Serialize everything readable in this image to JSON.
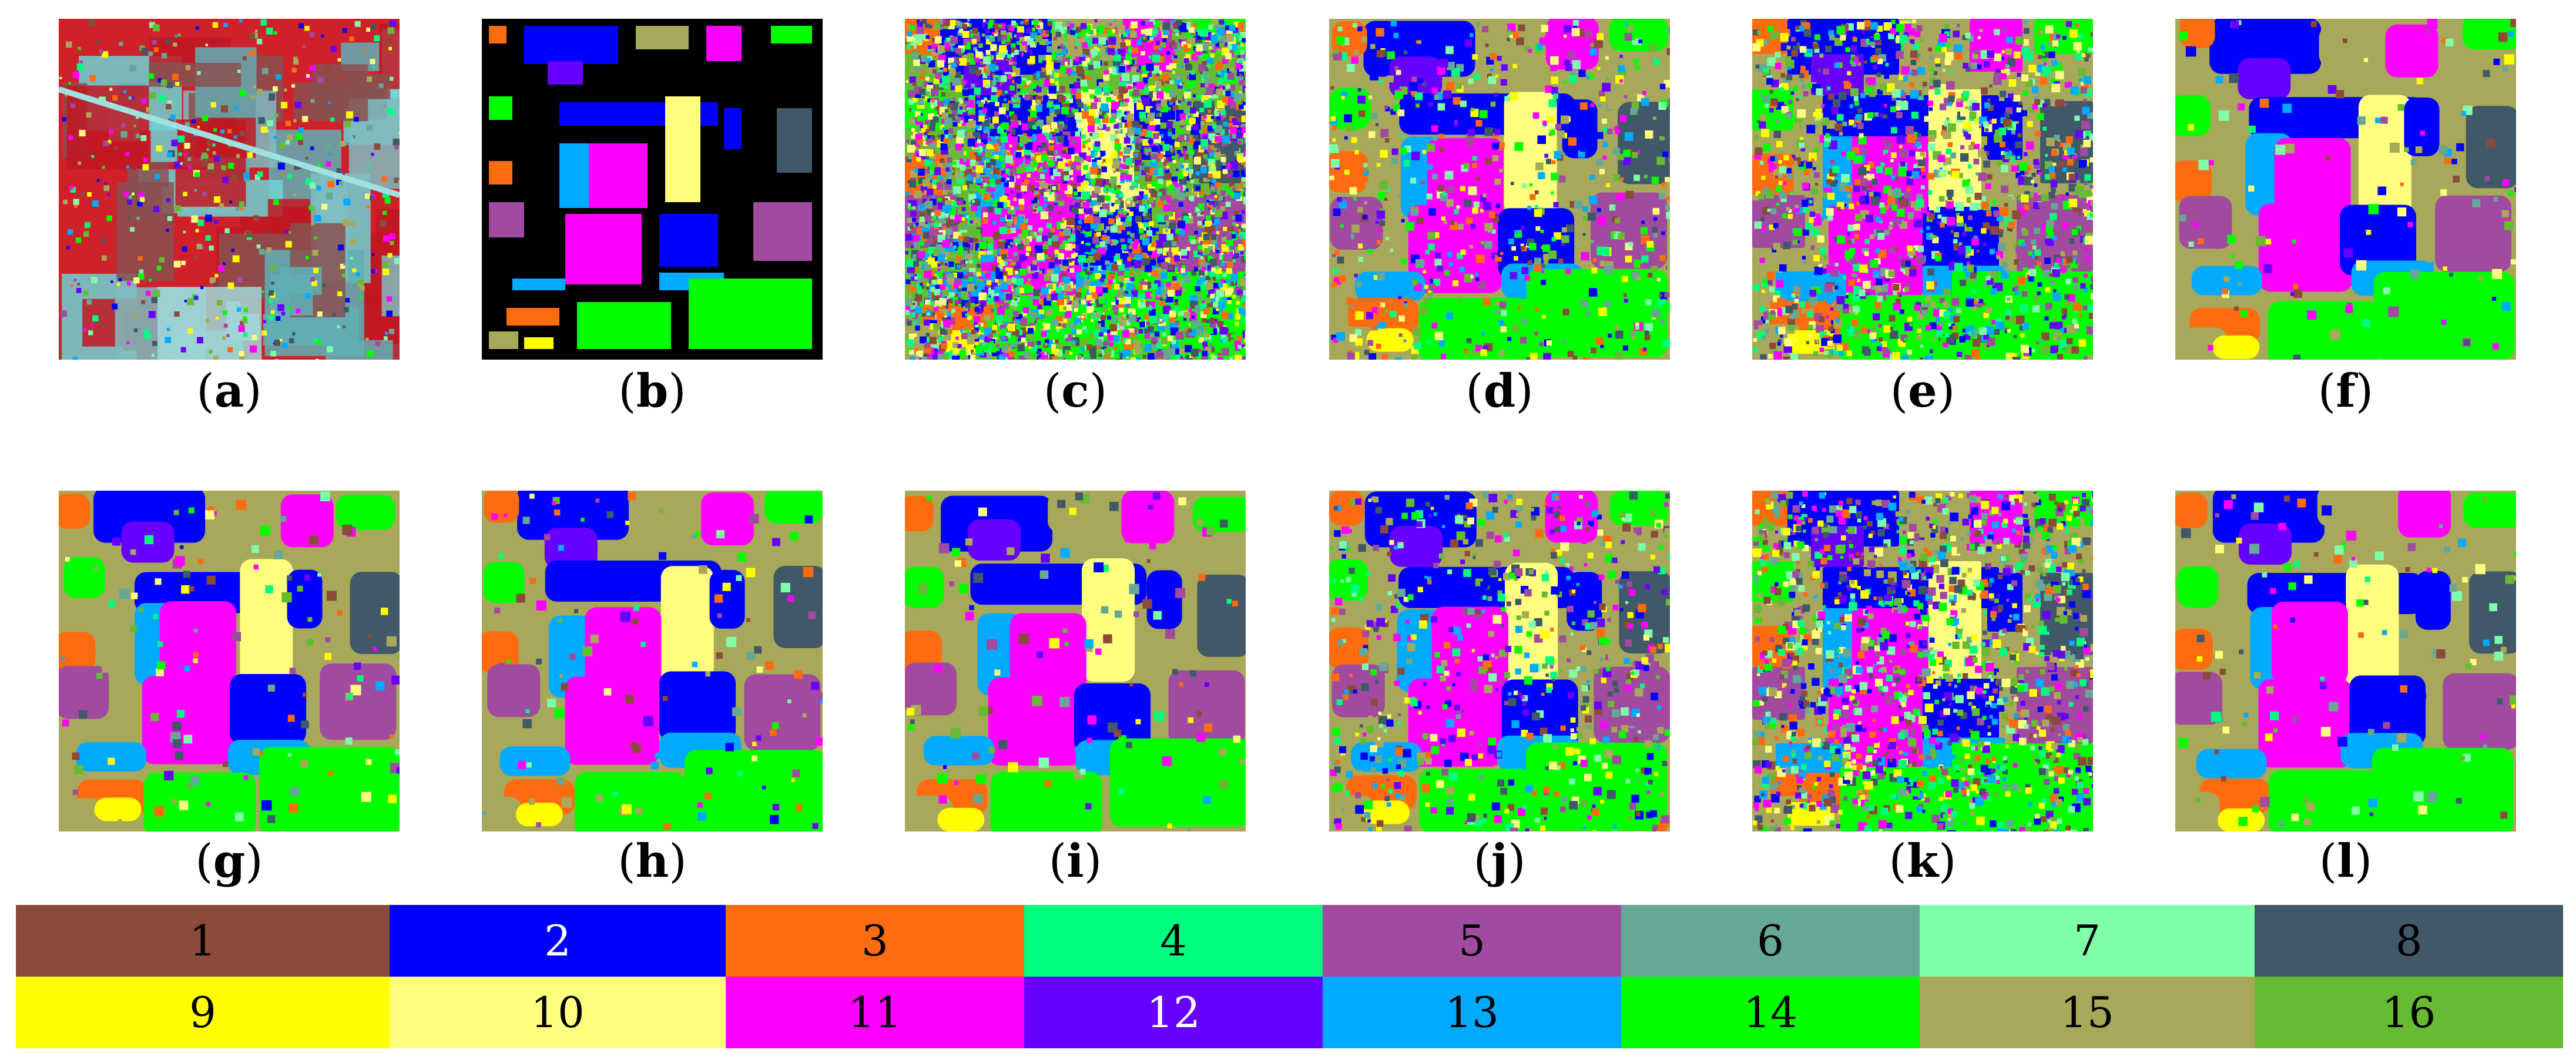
{
  "figure": {
    "panels": [
      {
        "id": "a",
        "caption": "a",
        "kind": "false-color image"
      },
      {
        "id": "b",
        "caption": "b",
        "kind": "ground truth"
      },
      {
        "id": "c",
        "caption": "c",
        "kind": "classification map"
      },
      {
        "id": "d",
        "caption": "d",
        "kind": "classification map"
      },
      {
        "id": "e",
        "caption": "e",
        "kind": "classification map"
      },
      {
        "id": "f",
        "caption": "f",
        "kind": "classification map"
      },
      {
        "id": "g",
        "caption": "g",
        "kind": "classification map"
      },
      {
        "id": "h",
        "caption": "h",
        "kind": "classification map"
      },
      {
        "id": "i",
        "caption": "i",
        "kind": "classification map"
      },
      {
        "id": "j",
        "caption": "j",
        "kind": "classification map"
      },
      {
        "id": "k",
        "caption": "k",
        "kind": "classification map"
      },
      {
        "id": "l",
        "caption": "l",
        "kind": "classification map"
      }
    ],
    "legend": [
      {
        "label": "1",
        "color": "#8B4A3A",
        "text_color": "#000000"
      },
      {
        "label": "2",
        "color": "#0000FF",
        "text_color": "#FFFFFF"
      },
      {
        "label": "3",
        "color": "#FF6B0F",
        "text_color": "#000000"
      },
      {
        "label": "4",
        "color": "#00FF7F",
        "text_color": "#000000"
      },
      {
        "label": "5",
        "color": "#A04BA0",
        "text_color": "#000000"
      },
      {
        "label": "6",
        "color": "#66A895",
        "text_color": "#000000"
      },
      {
        "label": "7",
        "color": "#7FFFAA",
        "text_color": "#000000"
      },
      {
        "label": "8",
        "color": "#415868",
        "text_color": "#000000"
      },
      {
        "label": "9",
        "color": "#FFFF00",
        "text_color": "#000000"
      },
      {
        "label": "10",
        "color": "#FFFF7F",
        "text_color": "#000000"
      },
      {
        "label": "11",
        "color": "#FF00FF",
        "text_color": "#000000"
      },
      {
        "label": "12",
        "color": "#6600FF",
        "text_color": "#FFFFFF"
      },
      {
        "label": "13",
        "color": "#00AAFF",
        "text_color": "#000000"
      },
      {
        "label": "14",
        "color": "#00FF00",
        "text_color": "#000000"
      },
      {
        "label": "15",
        "color": "#A8A85A",
        "text_color": "#000000"
      },
      {
        "label": "16",
        "color": "#66BB33",
        "text_color": "#000000"
      }
    ]
  }
}
